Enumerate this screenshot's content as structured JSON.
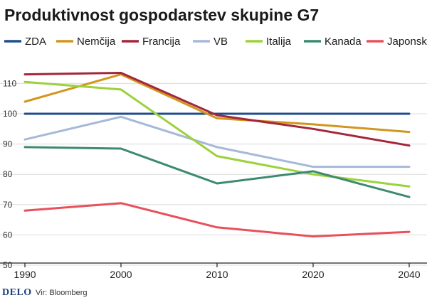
{
  "chart_data": {
    "type": "line",
    "title": "Produktivnost gospodarstev skupine G7",
    "xlabel": "",
    "ylabel": "",
    "x": [
      1990,
      2000,
      2010,
      2020,
      2040
    ],
    "x_ticks": [
      "1990",
      "2000",
      "2010",
      "2020",
      "2040"
    ],
    "y_ticks": [
      "50",
      "60",
      "70",
      "80",
      "90",
      "100",
      "110"
    ],
    "ylim": [
      47,
      118
    ],
    "grid": true,
    "legend_position": "top",
    "series": [
      {
        "name": "ZDA",
        "color": "#1f4e8c",
        "values": [
          100,
          100,
          100,
          100,
          100
        ]
      },
      {
        "name": "Nemčija",
        "color": "#d1961f",
        "values": [
          104,
          113,
          98.5,
          96.5,
          94
        ]
      },
      {
        "name": "Francija",
        "color": "#a3263a",
        "values": [
          113,
          113.5,
          99.5,
          95,
          89.5
        ]
      },
      {
        "name": "VB",
        "color": "#a6b9d8",
        "values": [
          91.5,
          99,
          89,
          82.5,
          82.5
        ]
      },
      {
        "name": "Italija",
        "color": "#9bd23c",
        "values": [
          110.5,
          108,
          86,
          80,
          76
        ]
      },
      {
        "name": "Kanada",
        "color": "#3c8a70",
        "values": [
          89,
          88.5,
          77,
          81,
          72.5
        ]
      },
      {
        "name": "Japonska",
        "color": "#e8505b",
        "values": [
          68,
          70.5,
          62.5,
          59.5,
          61
        ]
      }
    ]
  },
  "footer": {
    "brand": "DELO",
    "source": "Vir: Bloomberg"
  }
}
